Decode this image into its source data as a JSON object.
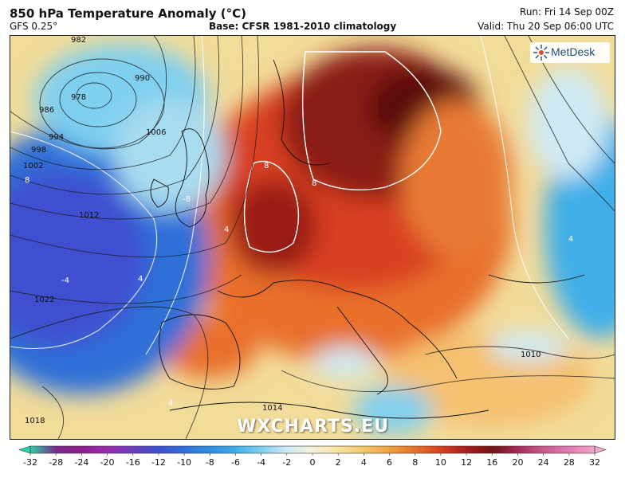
{
  "header": {
    "title": "850 hPa Temperature Anomaly (°C)",
    "subtitle": "GFS 0.25°",
    "base": "Base: CFSR 1981-2010 climatology",
    "run": "Run: Fri 14 Sep 00Z",
    "valid": "Valid: Thu 20 Sep 06:00 UTC"
  },
  "branding": {
    "logo": "MetDesk",
    "watermark": "WXCHARTS.EU"
  },
  "isobars": [
    {
      "label": "982"
    },
    {
      "label": "978"
    },
    {
      "label": "986"
    },
    {
      "label": "990"
    },
    {
      "label": "994"
    },
    {
      "label": "998"
    },
    {
      "label": "1002"
    },
    {
      "label": "1006"
    },
    {
      "label": "1010"
    },
    {
      "label": "1012"
    },
    {
      "label": "1014"
    },
    {
      "label": "1018"
    },
    {
      "label": "1022"
    }
  ],
  "anomaly_labels": [
    {
      "label": "8"
    },
    {
      "label": "8"
    },
    {
      "label": "8"
    },
    {
      "label": "4"
    },
    {
      "label": "4"
    },
    {
      "label": "4"
    },
    {
      "label": "4"
    },
    {
      "label": "-4"
    },
    {
      "label": "-8"
    }
  ],
  "colorbar": {
    "ticks": [
      "-32",
      "-28",
      "-24",
      "-20",
      "-16",
      "-12",
      "-10",
      "-8",
      "-6",
      "-4",
      "-2",
      "0",
      "2",
      "4",
      "6",
      "8",
      "10",
      "12",
      "16",
      "20",
      "24",
      "28",
      "32"
    ],
    "colors": [
      "#2fd0a8",
      "#7a2a8a",
      "#8a1f8c",
      "#9a2bb0",
      "#6a3fc0",
      "#3f4fcf",
      "#2f6fd8",
      "#2f8fe0",
      "#3fafe8",
      "#7fcfef",
      "#cfeaf4",
      "#f5f0d8",
      "#f7e3a0",
      "#f5c86a",
      "#f0a040",
      "#e8702a",
      "#d84020",
      "#a81e1e",
      "#701414",
      "#a32a5a",
      "#c85a90",
      "#e07ab0",
      "#f0a8cc"
    ]
  }
}
